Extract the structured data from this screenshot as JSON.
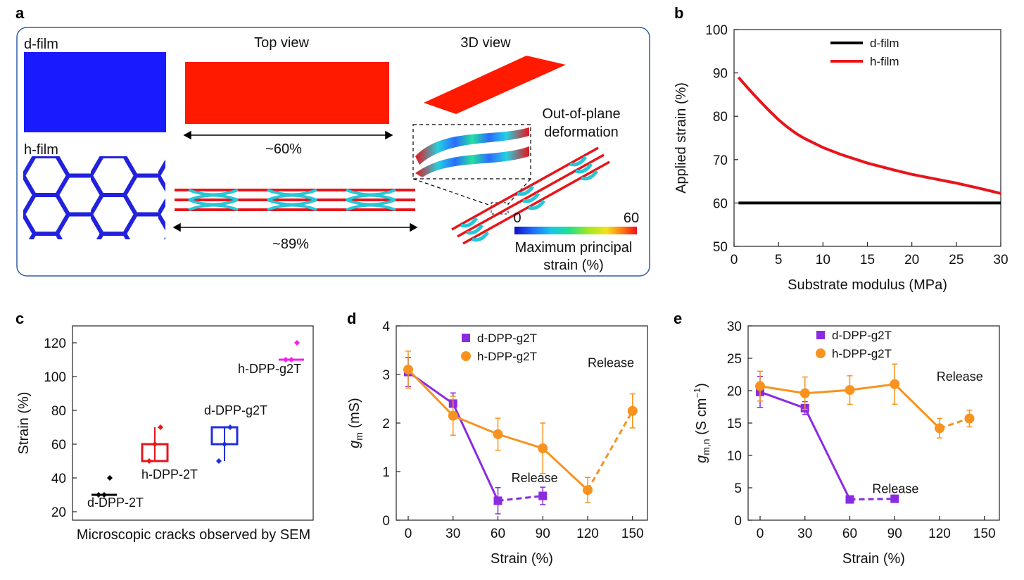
{
  "panel_labels": {
    "a": "a",
    "b": "b",
    "c": "c",
    "d": "d",
    "e": "e"
  },
  "panel_a": {
    "d_film": "d-film",
    "h_film": "h-film",
    "top_view": "Top view",
    "view_3d": "3D view",
    "strain_60": "~60%",
    "strain_89": "~89%",
    "out_of_plane_1": "Out-of-plane",
    "out_of_plane_2": "deformation",
    "colorbar_min": "0",
    "colorbar_max": "60",
    "colorbar_label_1": "Maximum principal",
    "colorbar_label_2": "strain (%)",
    "colors": {
      "d_film": "#1a1aff",
      "h_film_mesh": "#2222dd",
      "top_view": "#ff1a00",
      "frame": "#2e5fa8"
    }
  },
  "chart_data": [
    {
      "id": "b",
      "type": "line",
      "xlabel": "Substrate modulus (MPa)",
      "ylabel": "Applied strain (%)",
      "xlim": [
        0,
        30
      ],
      "ylim": [
        50,
        100
      ],
      "xticks": [
        0,
        5,
        10,
        15,
        20,
        25,
        30
      ],
      "yticks": [
        50,
        60,
        70,
        80,
        90,
        100
      ],
      "legend": "top-center",
      "series": [
        {
          "name": "d-film",
          "color": "#000000",
          "x": [
            0.5,
            30
          ],
          "y": [
            60,
            60
          ]
        },
        {
          "name": "h-film",
          "color": "#e8141a",
          "x": [
            0.5,
            1,
            2,
            3,
            4,
            5,
            6,
            7,
            8,
            10,
            12,
            15,
            18,
            20,
            22,
            25,
            28,
            30
          ],
          "y": [
            89,
            87.8,
            85.5,
            83.3,
            81.2,
            79.2,
            77.5,
            76,
            74.8,
            72.8,
            71.2,
            69.2,
            67.6,
            66.6,
            65.8,
            64.6,
            63.2,
            62.2
          ]
        }
      ]
    },
    {
      "id": "c",
      "type": "box",
      "xlabel": "Microscopic cracks observed by SEM",
      "ylabel": "Strain (%)",
      "ylim": [
        15,
        130
      ],
      "yticks": [
        20,
        40,
        60,
        80,
        100,
        120
      ],
      "groups": [
        {
          "name": "d-DPP-2T",
          "color": "#000000",
          "q1": 30,
          "median": 30,
          "q3": 30,
          "min": 30,
          "max": 30,
          "points": [
            30,
            30,
            40
          ]
        },
        {
          "name": "h-DPP-2T",
          "color": "#e8141a",
          "q1": 50,
          "median": 60,
          "q3": 60,
          "min": 50,
          "max": 70,
          "points": [
            50,
            60,
            70
          ]
        },
        {
          "name": "d-DPP-g2T",
          "color": "#1f2ee0",
          "q1": 60,
          "median": 60,
          "q3": 70,
          "min": 50,
          "max": 70,
          "points": [
            50,
            60,
            70
          ]
        },
        {
          "name": "h-DPP-g2T",
          "color": "#f020f0",
          "q1": 110,
          "median": 110,
          "q3": 110,
          "min": 110,
          "max": 110,
          "points": [
            110,
            110,
            120
          ]
        }
      ]
    },
    {
      "id": "d",
      "type": "line",
      "xlabel": "Strain (%)",
      "ylabel_main": "g",
      "ylabel_sub": "m",
      "ylabel_unit": " (mS)",
      "xlim": [
        -8,
        160
      ],
      "ylim": [
        0,
        4
      ],
      "xticks": [
        0,
        30,
        60,
        90,
        120,
        150
      ],
      "yticks": [
        0,
        1,
        2,
        3,
        4
      ],
      "legend": "top-center",
      "release_labels": [
        {
          "text": "Release",
          "x": 120,
          "y": 3.15
        },
        {
          "text": "Release",
          "x": 69,
          "y": 0.78
        }
      ],
      "series": [
        {
          "name": "d-DPP-g2T",
          "color": "#8a2be2",
          "marker": "square",
          "x": [
            0,
            30,
            60
          ],
          "y": [
            3.05,
            2.4,
            0.4
          ],
          "err": [
            0.3,
            0.22,
            0.27
          ],
          "release": {
            "x": [
              60,
              90
            ],
            "y": [
              0.4,
              0.5
            ],
            "err": [
              0,
              0.18
            ]
          }
        },
        {
          "name": "h-DPP-g2T",
          "color": "#f7931e",
          "marker": "circle",
          "x": [
            0,
            30,
            60,
            90,
            120
          ],
          "y": [
            3.1,
            2.15,
            1.77,
            1.48,
            0.62
          ],
          "err": [
            0.38,
            0.4,
            0.33,
            0.52,
            0.26
          ],
          "release": {
            "x": [
              120,
              150
            ],
            "y": [
              0.62,
              2.25
            ],
            "err": [
              0,
              0.35
            ]
          }
        }
      ]
    },
    {
      "id": "e",
      "type": "line",
      "xlabel": "Strain (%)",
      "ylabel_main": "g",
      "ylabel_sub": "m,n",
      "ylabel_unit": " (S cm",
      "ylabel_sup": "−1",
      "ylabel_close": ")",
      "xlim": [
        -8,
        160
      ],
      "ylim": [
        0,
        30
      ],
      "xticks": [
        0,
        30,
        60,
        90,
        120,
        150
      ],
      "yticks": [
        0,
        5,
        10,
        15,
        20,
        25,
        30
      ],
      "legend": "top-center",
      "release_labels": [
        {
          "text": "Release",
          "x": 118,
          "y": 21.5
        },
        {
          "text": "Release",
          "x": 75,
          "y": 4.2
        }
      ],
      "series": [
        {
          "name": "d-DPP-g2T",
          "color": "#8a2be2",
          "marker": "square",
          "x": [
            0,
            30,
            60
          ],
          "y": [
            19.8,
            17.3,
            3.2
          ],
          "err": [
            2.4,
            1.0,
            0.3
          ],
          "release": {
            "x": [
              60,
              90
            ],
            "y": [
              3.2,
              3.3
            ],
            "err": [
              0,
              0.4
            ]
          }
        },
        {
          "name": "h-DPP-g2T",
          "color": "#f7931e",
          "marker": "circle",
          "x": [
            0,
            30,
            60,
            90,
            120
          ],
          "y": [
            20.7,
            19.6,
            20.1,
            21.0,
            14.2
          ],
          "err": [
            2.3,
            2.5,
            2.2,
            3.1,
            1.5
          ],
          "release": {
            "x": [
              120,
              140
            ],
            "y": [
              14.2,
              15.7
            ],
            "err": [
              0,
              1.3
            ]
          }
        }
      ]
    }
  ]
}
